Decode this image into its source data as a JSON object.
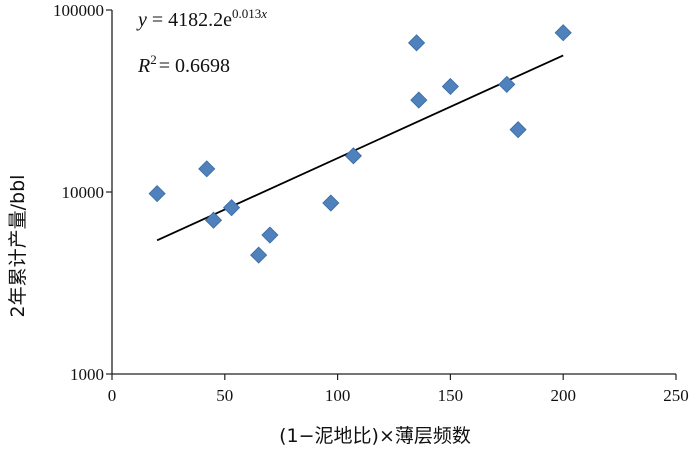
{
  "chart_data": {
    "type": "scatter",
    "title": "",
    "xlabel": "(1−泥地比)×薄层频数",
    "ylabel": "2年累计产量/bbl",
    "xlim": [
      0,
      250
    ],
    "ylim": [
      1000,
      100000
    ],
    "y_scale": "log",
    "x_ticks": [
      0,
      50,
      100,
      150,
      200,
      250
    ],
    "y_ticks": [
      1000,
      10000,
      100000
    ],
    "x_tick_labels": [
      "0",
      "50",
      "100",
      "150",
      "200",
      "250"
    ],
    "y_tick_labels": [
      "1000",
      "10000",
      "100000"
    ],
    "grid": false,
    "marker": "diamond",
    "marker_color": "#4f81bd",
    "trend_color": "#000000",
    "points": [
      {
        "x": 20,
        "y": 9800
      },
      {
        "x": 42,
        "y": 13400
      },
      {
        "x": 45,
        "y": 7000
      },
      {
        "x": 53,
        "y": 8200
      },
      {
        "x": 65,
        "y": 4500
      },
      {
        "x": 70,
        "y": 5800
      },
      {
        "x": 97,
        "y": 8700
      },
      {
        "x": 107,
        "y": 15800
      },
      {
        "x": 135,
        "y": 66000
      },
      {
        "x": 136,
        "y": 32000
      },
      {
        "x": 150,
        "y": 38000
      },
      {
        "x": 175,
        "y": 39000
      },
      {
        "x": 180,
        "y": 22000
      },
      {
        "x": 200,
        "y": 75000
      }
    ],
    "trendline": {
      "a": 4182.2,
      "b": 0.013,
      "x_range": [
        20,
        200
      ]
    },
    "equation": {
      "lhs": "y",
      "eq": " = 4182.2e",
      "exponent": "0.013",
      "exponent_var": "x"
    },
    "r_squared": {
      "symbol": "R",
      "sup": "2",
      "value": "= 0.6698"
    }
  }
}
